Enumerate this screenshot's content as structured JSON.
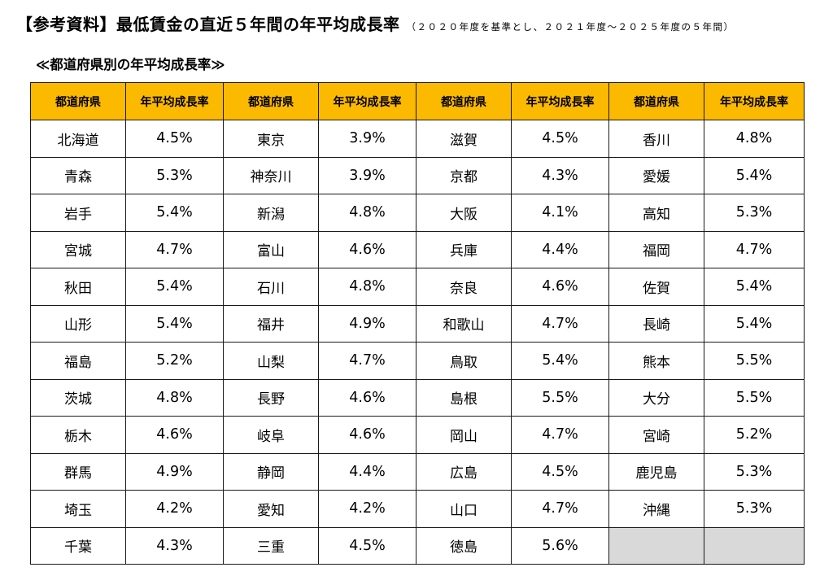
{
  "header": {
    "title": "【参考資料】最低賃金の直近５年間の年平均成長率",
    "subtitle": "（２０２０年度を基準とし、２０２１年度〜２０２５年度の５年間）"
  },
  "section": {
    "heading": "≪都道府県別の年平均成長率≫"
  },
  "table": {
    "column_headers": [
      "都道府県",
      "年平均成長率",
      "都道府県",
      "年平均成長率",
      "都道府県",
      "年平均成長率",
      "都道府県",
      "年平均成長率"
    ],
    "rows": [
      [
        {
          "pref": "北海道",
          "rate": "4.5%"
        },
        {
          "pref": "東京",
          "rate": "3.9%"
        },
        {
          "pref": "滋賀",
          "rate": "4.5%"
        },
        {
          "pref": "香川",
          "rate": "4.8%"
        }
      ],
      [
        {
          "pref": "青森",
          "rate": "5.3%"
        },
        {
          "pref": "神奈川",
          "rate": "3.9%"
        },
        {
          "pref": "京都",
          "rate": "4.3%"
        },
        {
          "pref": "愛媛",
          "rate": "5.4%"
        }
      ],
      [
        {
          "pref": "岩手",
          "rate": "5.4%"
        },
        {
          "pref": "新潟",
          "rate": "4.8%"
        },
        {
          "pref": "大阪",
          "rate": "4.1%"
        },
        {
          "pref": "高知",
          "rate": "5.3%"
        }
      ],
      [
        {
          "pref": "宮城",
          "rate": "4.7%"
        },
        {
          "pref": "富山",
          "rate": "4.6%"
        },
        {
          "pref": "兵庫",
          "rate": "4.4%"
        },
        {
          "pref": "福岡",
          "rate": "4.7%"
        }
      ],
      [
        {
          "pref": "秋田",
          "rate": "5.4%"
        },
        {
          "pref": "石川",
          "rate": "4.8%"
        },
        {
          "pref": "奈良",
          "rate": "4.6%"
        },
        {
          "pref": "佐賀",
          "rate": "5.4%"
        }
      ],
      [
        {
          "pref": "山形",
          "rate": "5.4%"
        },
        {
          "pref": "福井",
          "rate": "4.9%"
        },
        {
          "pref": "和歌山",
          "rate": "4.7%"
        },
        {
          "pref": "長崎",
          "rate": "5.4%"
        }
      ],
      [
        {
          "pref": "福島",
          "rate": "5.2%"
        },
        {
          "pref": "山梨",
          "rate": "4.7%"
        },
        {
          "pref": "鳥取",
          "rate": "5.4%"
        },
        {
          "pref": "熊本",
          "rate": "5.5%"
        }
      ],
      [
        {
          "pref": "茨城",
          "rate": "4.8%"
        },
        {
          "pref": "長野",
          "rate": "4.6%"
        },
        {
          "pref": "島根",
          "rate": "5.5%"
        },
        {
          "pref": "大分",
          "rate": "5.5%"
        }
      ],
      [
        {
          "pref": "栃木",
          "rate": "4.6%"
        },
        {
          "pref": "岐阜",
          "rate": "4.6%"
        },
        {
          "pref": "岡山",
          "rate": "4.7%"
        },
        {
          "pref": "宮崎",
          "rate": "5.2%"
        }
      ],
      [
        {
          "pref": "群馬",
          "rate": "4.9%"
        },
        {
          "pref": "静岡",
          "rate": "4.4%"
        },
        {
          "pref": "広島",
          "rate": "4.5%"
        },
        {
          "pref": "鹿児島",
          "rate": "5.3%"
        }
      ],
      [
        {
          "pref": "埼玉",
          "rate": "4.2%"
        },
        {
          "pref": "愛知",
          "rate": "4.2%"
        },
        {
          "pref": "山口",
          "rate": "4.7%"
        },
        {
          "pref": "沖縄",
          "rate": "5.3%"
        }
      ],
      [
        {
          "pref": "千葉",
          "rate": "4.3%"
        },
        {
          "pref": "三重",
          "rate": "4.5%"
        },
        {
          "pref": "徳島",
          "rate": "5.6%"
        },
        null
      ]
    ]
  },
  "colors": {
    "header_fill": "#fbb900",
    "empty_cell_fill": "#d9d9d9",
    "border": "#1a1a1a"
  }
}
